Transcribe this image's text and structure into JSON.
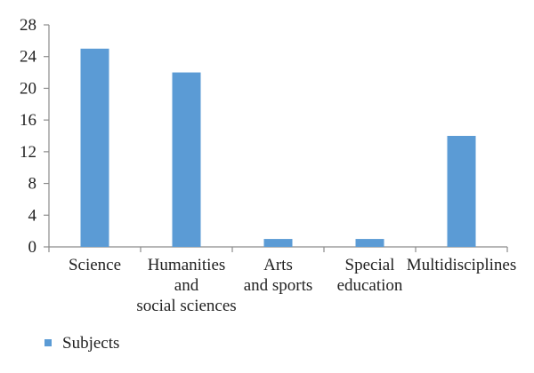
{
  "chart_data": {
    "type": "bar",
    "title": "",
    "xlabel": "",
    "ylabel": "",
    "categories": [
      [
        "Science"
      ],
      [
        "Humanities",
        "and",
        "social sciences"
      ],
      [
        "Arts",
        "and sports"
      ],
      [
        "Special",
        "education"
      ],
      [
        "Multidisciplines"
      ]
    ],
    "series": [
      {
        "name": "Subjects",
        "values": [
          25,
          22,
          1,
          1,
          14
        ],
        "color": "#5b9bd5"
      }
    ],
    "ylim": [
      0,
      28
    ],
    "yticks": [
      0,
      4,
      8,
      12,
      16,
      20,
      24,
      28
    ],
    "grid": false,
    "legend": "bottom-left"
  }
}
